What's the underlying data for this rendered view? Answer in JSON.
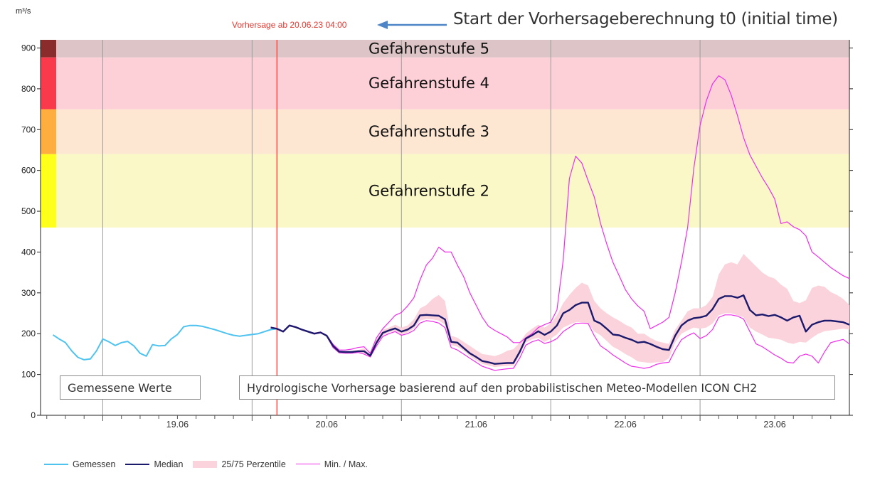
{
  "header": {
    "unit": "m³/s",
    "forecast_start": "Vorhersage ab 20.06.23 04:00",
    "annotation": "Start der Vorhersageberechnung t0 (initial time)"
  },
  "boxes": {
    "measured": "Gemessene Werte",
    "forecast": "Hydrologische Vorhersage basierend auf den probabilistischen Meteo-Modellen ICON CH2"
  },
  "legend": {
    "measured": "Gemessen",
    "median": "Median",
    "percentile": "25/75 Perzentile",
    "minmax": "Min. / Max."
  },
  "colors": {
    "measured": "#4fc3f0",
    "median": "#1c1a6c",
    "percentile_band": "#fbd3dc",
    "minmax": "#ee2ee8",
    "forecast_line": "#f0463d",
    "level2": "#fbf8c8",
    "level2_bar": "#ffff1c",
    "level3": "#fde7d3",
    "level3_bar": "#fdae3e",
    "level4": "#fdd0d8",
    "level4_bar": "#f93a4c",
    "level5": "#ddc4c6",
    "level5_bar": "#8b2c2c"
  },
  "chart_data": {
    "type": "line",
    "ylabel": "m³/s",
    "ylim": [
      0,
      920
    ],
    "yticks": [
      0,
      100,
      200,
      300,
      400,
      500,
      600,
      700,
      800,
      900
    ],
    "xticks": [
      "19.06",
      "20.06",
      "21.06",
      "22.06",
      "23.06"
    ],
    "day_start_hours": [
      0,
      24,
      48,
      72,
      96
    ],
    "forecast_start_hour": 28,
    "danger_levels": [
      {
        "label": "Gefahrenstufe 2",
        "from": 460,
        "to": 640
      },
      {
        "label": "Gefahrenstufe 3",
        "from": 640,
        "to": 750
      },
      {
        "label": "Gefahrenstufe 4",
        "from": 750,
        "to": 877
      },
      {
        "label": "Gefahrenstufe 5",
        "from": 877,
        "to": 920
      }
    ],
    "series": [
      {
        "name": "Gemessen",
        "x": [
          -8,
          -7,
          -6,
          -5,
          -4,
          -3,
          -2,
          -1,
          0,
          1,
          2,
          3,
          4,
          5,
          6,
          7,
          8,
          9,
          10,
          11,
          12,
          13,
          14,
          15,
          16,
          17,
          18,
          19,
          20,
          21,
          22,
          23,
          24,
          25,
          26,
          27,
          28
        ],
        "y": [
          197,
          187,
          178,
          158,
          142,
          136,
          138,
          158,
          187,
          180,
          171,
          178,
          181,
          170,
          152,
          145,
          173,
          170,
          171,
          187,
          198,
          217,
          220,
          220,
          218,
          214,
          210,
          205,
          200,
          196,
          194,
          196,
          198,
          200,
          205,
          210,
          212
        ]
      },
      {
        "name": "Median",
        "x": [
          27,
          28,
          29,
          30,
          31,
          32,
          33,
          34,
          35,
          36,
          37,
          38,
          39,
          40,
          41,
          42,
          43,
          44,
          45,
          46,
          47,
          48,
          49,
          50,
          51,
          52,
          53,
          54,
          55,
          56,
          57,
          58,
          59,
          60,
          61,
          62,
          63,
          64,
          65,
          66,
          67,
          68,
          69,
          70,
          71,
          72,
          73,
          74,
          75,
          76,
          77,
          78,
          79,
          80,
          81,
          82,
          83,
          84,
          85,
          86,
          87,
          88,
          89,
          90,
          91,
          92,
          93,
          94,
          95,
          96,
          97,
          98,
          99,
          100,
          101,
          102,
          103,
          104,
          105,
          106,
          107,
          108,
          109,
          110,
          111,
          112,
          113,
          114,
          115,
          116,
          117,
          118,
          119,
          120
        ],
        "y": [
          215,
          212,
          205,
          220,
          216,
          210,
          205,
          200,
          203,
          195,
          170,
          156,
          155,
          155,
          157,
          157,
          146,
          178,
          202,
          208,
          213,
          205,
          210,
          220,
          245,
          246,
          245,
          244,
          235,
          180,
          178,
          165,
          152,
          143,
          133,
          130,
          126,
          127,
          128,
          128,
          155,
          188,
          196,
          206,
          197,
          205,
          220,
          250,
          258,
          270,
          276,
          276,
          232,
          225,
          212,
          198,
          196,
          190,
          185,
          178,
          180,
          175,
          168,
          162,
          160,
          195,
          220,
          232,
          238,
          240,
          244,
          260,
          285,
          292,
          292,
          288,
          294,
          258,
          245,
          247,
          243,
          246,
          240,
          232,
          240,
          244,
          205,
          222,
          228,
          232,
          232,
          230,
          228,
          222
        ]
      },
      {
        "name": "25/75 Perzentile",
        "x": [
          27,
          28,
          29,
          30,
          31,
          32,
          33,
          34,
          35,
          36,
          37,
          38,
          39,
          40,
          41,
          42,
          43,
          44,
          45,
          46,
          47,
          48,
          49,
          50,
          51,
          52,
          53,
          54,
          55,
          56,
          57,
          58,
          59,
          60,
          61,
          62,
          63,
          64,
          65,
          66,
          67,
          68,
          69,
          70,
          71,
          72,
          73,
          74,
          75,
          76,
          77,
          78,
          79,
          80,
          81,
          82,
          83,
          84,
          85,
          86,
          87,
          88,
          89,
          90,
          91,
          92,
          93,
          94,
          95,
          96,
          97,
          98,
          99,
          100,
          101,
          102,
          103,
          104,
          105,
          106,
          107,
          108,
          109,
          110,
          111,
          112,
          113,
          114,
          115,
          116,
          117,
          118,
          119,
          120
        ],
        "lower": [
          214,
          211,
          204,
          219,
          215,
          209,
          204,
          199,
          202,
          194,
          168,
          154,
          153,
          153,
          155,
          152,
          144,
          172,
          195,
          203,
          207,
          198,
          203,
          212,
          232,
          236,
          235,
          232,
          222,
          172,
          168,
          158,
          145,
          135,
          126,
          122,
          118,
          120,
          121,
          122,
          148,
          178,
          186,
          190,
          180,
          188,
          198,
          215,
          222,
          228,
          228,
          225,
          205,
          196,
          182,
          168,
          160,
          150,
          142,
          132,
          130,
          128,
          130,
          130,
          140,
          178,
          200,
          208,
          215,
          212,
          215,
          225,
          245,
          250,
          250,
          245,
          240,
          215,
          205,
          198,
          190,
          188,
          185,
          178,
          175,
          180,
          178,
          190,
          200,
          206,
          208,
          210,
          212,
          210
        ],
        "upper": [
          216,
          213,
          206,
          221,
          217,
          211,
          206,
          201,
          204,
          196,
          172,
          158,
          157,
          158,
          160,
          164,
          150,
          186,
          210,
          215,
          222,
          215,
          220,
          235,
          262,
          270,
          285,
          295,
          280,
          195,
          190,
          180,
          170,
          160,
          150,
          148,
          145,
          150,
          158,
          162,
          178,
          200,
          212,
          222,
          215,
          225,
          245,
          275,
          295,
          312,
          325,
          318,
          280,
          262,
          250,
          240,
          232,
          222,
          215,
          200,
          200,
          190,
          182,
          178,
          175,
          210,
          232,
          255,
          262,
          262,
          270,
          290,
          345,
          370,
          375,
          370,
          395,
          380,
          365,
          350,
          340,
          335,
          320,
          310,
          280,
          275,
          282,
          312,
          318,
          315,
          302,
          295,
          285,
          270
        ]
      },
      {
        "name": "Min. / Max.",
        "x": [
          27,
          28,
          29,
          30,
          31,
          32,
          33,
          34,
          35,
          36,
          37,
          38,
          39,
          40,
          41,
          42,
          43,
          44,
          45,
          46,
          47,
          48,
          49,
          50,
          51,
          52,
          53,
          54,
          55,
          56,
          57,
          58,
          59,
          60,
          61,
          62,
          63,
          64,
          65,
          66,
          67,
          68,
          69,
          70,
          71,
          72,
          73,
          74,
          75,
          76,
          77,
          78,
          79,
          80,
          81,
          82,
          83,
          84,
          85,
          86,
          87,
          88,
          89,
          90,
          91,
          92,
          93,
          94,
          95,
          96,
          97,
          98,
          99,
          100,
          101,
          102,
          103,
          104,
          105,
          106,
          107,
          108,
          109,
          110,
          111,
          112,
          113,
          114,
          115,
          116,
          117,
          118,
          119,
          120
        ],
        "min": [
          214,
          211,
          204,
          219,
          215,
          209,
          204,
          199,
          202,
          194,
          166,
          153,
          152,
          152,
          154,
          150,
          143,
          170,
          193,
          200,
          205,
          196,
          200,
          208,
          226,
          232,
          230,
          226,
          215,
          166,
          160,
          150,
          140,
          130,
          120,
          115,
          110,
          112,
          114,
          115,
          140,
          172,
          180,
          185,
          176,
          180,
          188,
          205,
          215,
          225,
          226,
          225,
          195,
          170,
          160,
          148,
          138,
          128,
          120,
          118,
          115,
          118,
          125,
          128,
          130,
          160,
          185,
          195,
          202,
          188,
          195,
          210,
          240,
          246,
          246,
          243,
          236,
          205,
          175,
          168,
          158,
          148,
          140,
          130,
          128,
          145,
          150,
          145,
          128,
          155,
          178,
          182,
          186,
          175
        ],
        "max": [
          216,
          213,
          206,
          221,
          217,
          211,
          206,
          201,
          204,
          196,
          174,
          160,
          160,
          162,
          166,
          168,
          152,
          190,
          212,
          228,
          245,
          252,
          268,
          288,
          332,
          368,
          385,
          412,
          400,
          400,
          368,
          340,
          300,
          270,
          240,
          218,
          208,
          200,
          192,
          178,
          178,
          190,
          200,
          215,
          222,
          228,
          258,
          380,
          580,
          635,
          618,
          575,
          535,
          470,
          420,
          375,
          342,
          308,
          285,
          268,
          255,
          212,
          220,
          228,
          240,
          300,
          375,
          460,
          605,
          710,
          770,
          812,
          832,
          822,
          785,
          735,
          680,
          638,
          610,
          582,
          558,
          530,
          470,
          474,
          462,
          455,
          440,
          400,
          388,
          375,
          362,
          352,
          342,
          335
        ]
      }
    ]
  }
}
